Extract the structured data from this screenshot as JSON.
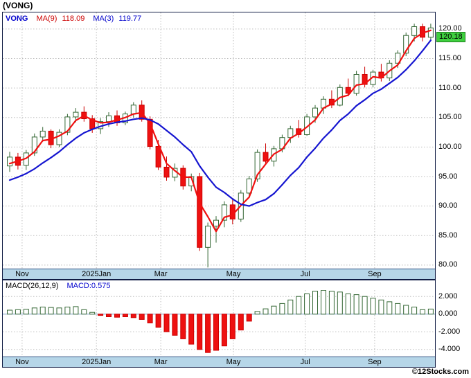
{
  "window": {
    "title": "(VONG)",
    "watermark": "©12Stocks.com"
  },
  "main_chart": {
    "legend": {
      "symbol": "VONG",
      "ma9_label": "MA(9)",
      "ma9_value": "118.09",
      "ma3_label": "MA(3)",
      "ma3_value": "119.77"
    },
    "last_price_badge": "120.18"
  },
  "macd_panel": {
    "name": "MACD(26,12,9)",
    "value": "MACD:0.575"
  },
  "colors": {
    "up": "#336633",
    "down": "#cc0000",
    "down_fill": "#ee1111",
    "ma3_line": "#f01010",
    "ma9_line": "#1515d0",
    "grid": "#bdbdbd",
    "zero_line": "#7a9cc4",
    "badge_bg": "#3ecf3e",
    "band_bg": "#b6d6e8"
  },
  "chart_data": [
    {
      "type": "candlestick",
      "title": "VONG",
      "last_price": 120.18,
      "ylim": [
        79.4,
        122.8
      ],
      "y_ticks": [
        {
          "v": 120,
          "label": "120.00"
        },
        {
          "v": 115,
          "label": "115.00"
        },
        {
          "v": 110,
          "label": "110.00"
        },
        {
          "v": 105,
          "label": "105.00"
        },
        {
          "v": 100,
          "label": "100.00"
        },
        {
          "v": 95,
          "label": "95.00"
        },
        {
          "v": 90,
          "label": "90.00"
        },
        {
          "v": 85,
          "label": "85.00"
        },
        {
          "v": 80,
          "label": "80.00"
        }
      ],
      "x_ticks": [
        {
          "i": 1.5,
          "label": "Nov"
        },
        {
          "i": 10.5,
          "label": "2025Jan"
        },
        {
          "i": 18.3,
          "label": "Mar"
        },
        {
          "i": 27.1,
          "label": "May"
        },
        {
          "i": 35.8,
          "label": "Jul"
        },
        {
          "i": 44.2,
          "label": "Sep"
        }
      ],
      "candles_ohlc": [
        [
          96.8,
          99.2,
          95.8,
          98.3
        ],
        [
          98.3,
          99.0,
          96.2,
          96.9
        ],
        [
          96.9,
          99.5,
          96.1,
          99.0
        ],
        [
          99.0,
          102.3,
          98.5,
          101.7
        ],
        [
          101.7,
          103.4,
          100.9,
          102.7
        ],
        [
          102.7,
          103.0,
          99.8,
          100.4
        ],
        [
          100.4,
          103.0,
          100.0,
          102.5
        ],
        [
          102.5,
          105.6,
          102.0,
          105.1
        ],
        [
          105.1,
          106.6,
          104.2,
          105.9
        ],
        [
          105.9,
          106.9,
          104.3,
          104.8
        ],
        [
          104.8,
          105.4,
          102.4,
          103.1
        ],
        [
          103.1,
          104.9,
          102.2,
          104.3
        ],
        [
          104.3,
          105.9,
          103.4,
          105.3
        ],
        [
          105.3,
          106.2,
          103.6,
          104.1
        ],
        [
          104.1,
          106.0,
          103.7,
          105.6
        ],
        [
          105.6,
          107.6,
          105.0,
          107.1
        ],
        [
          107.1,
          107.9,
          104.3,
          104.7
        ],
        [
          104.7,
          105.2,
          99.6,
          100.1
        ],
        [
          100.1,
          101.2,
          96.1,
          96.6
        ],
        [
          96.6,
          98.4,
          94.3,
          94.9
        ],
        [
          94.9,
          97.2,
          94.2,
          96.4
        ],
        [
          96.4,
          96.9,
          92.8,
          93.4
        ],
        [
          93.4,
          95.5,
          92.5,
          95.0
        ],
        [
          95.0,
          95.6,
          82.4,
          83.0
        ],
        [
          83.0,
          87.2,
          79.6,
          86.6
        ],
        [
          86.6,
          88.3,
          83.8,
          87.6
        ],
        [
          87.6,
          90.8,
          86.4,
          90.2
        ],
        [
          90.2,
          91.2,
          86.9,
          87.8
        ],
        [
          87.8,
          92.7,
          87.3,
          92.2
        ],
        [
          92.2,
          95.1,
          91.6,
          94.6
        ],
        [
          94.6,
          99.6,
          94.1,
          99.1
        ],
        [
          99.1,
          100.6,
          97.1,
          97.6
        ],
        [
          97.6,
          100.2,
          96.7,
          99.7
        ],
        [
          99.7,
          102.1,
          99.1,
          101.6
        ],
        [
          101.6,
          103.6,
          100.7,
          103.1
        ],
        [
          103.1,
          104.6,
          101.6,
          102.1
        ],
        [
          102.1,
          105.6,
          101.9,
          105.1
        ],
        [
          105.1,
          107.1,
          104.1,
          106.6
        ],
        [
          106.6,
          108.6,
          105.6,
          108.1
        ],
        [
          108.1,
          109.6,
          106.6,
          107.1
        ],
        [
          107.1,
          110.6,
          106.9,
          110.1
        ],
        [
          110.1,
          111.6,
          108.6,
          109.1
        ],
        [
          109.1,
          112.9,
          108.7,
          112.3
        ],
        [
          112.3,
          113.6,
          110.1,
          110.6
        ],
        [
          110.6,
          113.1,
          110.1,
          112.7
        ],
        [
          112.7,
          114.1,
          111.1,
          111.7
        ],
        [
          111.7,
          114.7,
          111.2,
          114.2
        ],
        [
          114.2,
          116.4,
          113.4,
          115.9
        ],
        [
          115.9,
          119.4,
          115.4,
          118.9
        ],
        [
          118.9,
          120.9,
          117.9,
          120.4
        ],
        [
          120.4,
          120.9,
          117.9,
          118.6
        ],
        [
          118.6,
          120.9,
          118.1,
          120.18
        ]
      ],
      "series": [
        {
          "name": "MA(3)",
          "color": "#f01010",
          "values": [
            97.2,
            97.6,
            98.1,
            99.2,
            101.1,
            101.3,
            101.9,
            102.7,
            104.5,
            105.3,
            104.6,
            104.1,
            104.2,
            104.6,
            105.0,
            105.6,
            105.8,
            104.0,
            100.5,
            97.2,
            96.0,
            94.9,
            94.9,
            90.5,
            88.2,
            85.7,
            88.1,
            88.5,
            90.1,
            91.5,
            95.3,
            97.1,
            98.8,
            99.6,
            101.5,
            102.3,
            103.4,
            104.6,
            106.6,
            107.3,
            108.4,
            108.8,
            110.5,
            110.7,
            111.9,
            111.7,
            112.9,
            113.9,
            116.3,
            118.4,
            119.3,
            119.77
          ]
        },
        {
          "name": "MA(9)",
          "color": "#1515d0",
          "values": [
            94.4,
            94.9,
            95.5,
            96.3,
            97.3,
            98.2,
            99.2,
            100.4,
            101.5,
            102.4,
            103.0,
            103.5,
            103.9,
            104.2,
            104.4,
            104.7,
            104.9,
            104.6,
            103.9,
            102.8,
            101.7,
            100.4,
            99.2,
            96.8,
            94.9,
            93.2,
            92.3,
            91.2,
            90.3,
            90.0,
            90.6,
            91.1,
            92.1,
            93.6,
            95.2,
            96.5,
            98.3,
            99.8,
            101.5,
            102.9,
            104.5,
            105.6,
            107.0,
            108.0,
            109.1,
            109.8,
            110.8,
            111.8,
            113.1,
            114.6,
            116.3,
            118.09
          ]
        }
      ]
    },
    {
      "type": "bar",
      "title": "MACD(26,12,9)",
      "last_value": 0.575,
      "ylim": [
        -4.8,
        2.72
      ],
      "y_ticks": [
        {
          "v": 2,
          "label": "2.000"
        },
        {
          "v": 0,
          "label": "0.000"
        },
        {
          "v": -2,
          "label": "-2.000"
        },
        {
          "v": -4,
          "label": "-4.000"
        }
      ],
      "values": [
        0.45,
        0.5,
        0.55,
        0.7,
        0.8,
        0.75,
        0.7,
        0.8,
        0.85,
        0.5,
        0.2,
        -0.15,
        -0.3,
        -0.35,
        -0.3,
        -0.4,
        -0.6,
        -1.0,
        -1.5,
        -2.0,
        -2.4,
        -2.8,
        -3.4,
        -4.0,
        -4.35,
        -4.1,
        -3.6,
        -2.8,
        -1.8,
        -0.8,
        0.3,
        0.6,
        0.9,
        1.2,
        1.6,
        2.0,
        2.3,
        2.6,
        2.7,
        2.6,
        2.5,
        2.3,
        2.2,
        2.0,
        1.8,
        1.6,
        1.4,
        1.2,
        1.0,
        0.8,
        0.5,
        0.575
      ]
    }
  ]
}
